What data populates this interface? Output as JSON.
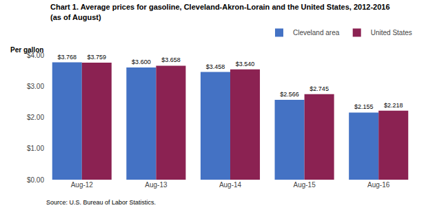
{
  "chart_data": {
    "type": "bar",
    "title": "Chart 1. Average prices for gasoline, Cleveland-Akron-Lorain and the United States, 2012-2016",
    "subtitle": "(as of August)",
    "ylabel": "Per gallon",
    "annotations": [
      "Source: U.S. Bureau of Labor Statistics."
    ],
    "categories": [
      "Aug-12",
      "Aug-13",
      "Aug-14",
      "Aug-15",
      "Aug-16"
    ],
    "series": [
      {
        "name": "Cleveland area",
        "color": "#4472C4",
        "values": [
          3.768,
          3.6,
          3.458,
          2.566,
          2.155
        ],
        "value_labels": [
          "$3.768",
          "$3.600",
          "$3.458",
          "$2.566",
          "$2.155"
        ]
      },
      {
        "name": "United States",
        "color": "#8B2252",
        "values": [
          3.759,
          3.658,
          3.54,
          2.745,
          2.218
        ],
        "value_labels": [
          "$3.759",
          "$3.658",
          "$3.540",
          "$2.745",
          "$2.218"
        ]
      }
    ],
    "ylim": [
      0,
      4.0
    ],
    "yticks": [
      {
        "value": 0,
        "label": "$0.00"
      },
      {
        "value": 1,
        "label": "$1.00"
      },
      {
        "value": 2,
        "label": "$2.00"
      },
      {
        "value": 3,
        "label": "$3.00"
      },
      {
        "value": 4,
        "label": "$4.00"
      }
    ],
    "grid": false,
    "legend": "upper right",
    "data_labels": true
  }
}
